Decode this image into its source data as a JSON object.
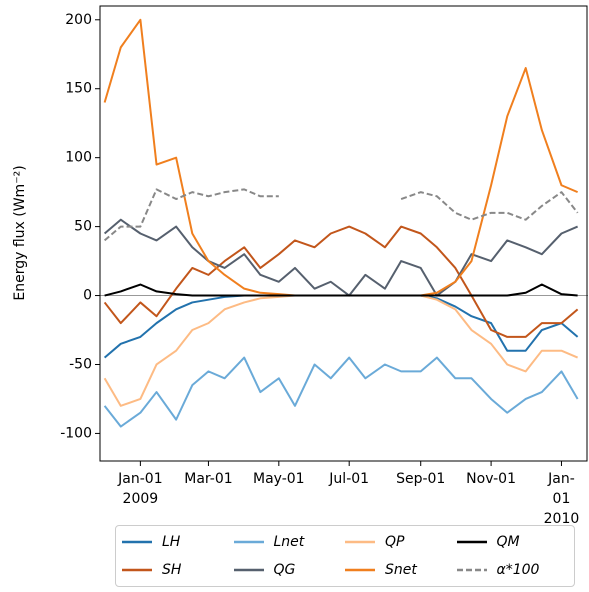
{
  "chart_data": {
    "type": "line",
    "y_label": "Energy flux (Wm⁻²)",
    "x": [
      "2008-12-01",
      "2008-12-15",
      "2009-01-01",
      "2009-01-15",
      "2009-02-01",
      "2009-02-15",
      "2009-03-01",
      "2009-03-15",
      "2009-04-01",
      "2009-04-15",
      "2009-05-01",
      "2009-05-15",
      "2009-06-01",
      "2009-06-15",
      "2009-07-01",
      "2009-07-15",
      "2009-08-01",
      "2009-08-15",
      "2009-09-01",
      "2009-09-15",
      "2009-10-01",
      "2009-10-15",
      "2009-11-01",
      "2009-11-15",
      "2009-12-01",
      "2009-12-15",
      "2010-01-01",
      "2010-01-15"
    ],
    "xlim": [
      "2008-11-27",
      "2010-01-24"
    ],
    "xticks": [
      {
        "value": "2009-01-01",
        "label": "Jan-01\n2009"
      },
      {
        "value": "2009-03-01",
        "label": "Mar-01"
      },
      {
        "value": "2009-05-01",
        "label": "May-01"
      },
      {
        "value": "2009-07-01",
        "label": "Jul-01"
      },
      {
        "value": "2009-09-01",
        "label": "Sep-01"
      },
      {
        "value": "2009-11-01",
        "label": "Nov-01"
      },
      {
        "value": "2010-01-01",
        "label": "Jan-01\n2010"
      }
    ],
    "ylim": [
      -120,
      210
    ],
    "yticks": [
      -100,
      -50,
      0,
      50,
      100,
      150,
      200
    ],
    "series": [
      {
        "name": "LH",
        "color": "#2272ad",
        "values": [
          -45,
          -35,
          -30,
          -20,
          -10,
          -5,
          -3,
          -1,
          0,
          0,
          0,
          0,
          0,
          0,
          0,
          0,
          0,
          0,
          0,
          -2,
          -8,
          -15,
          -20,
          -40,
          -40,
          -25,
          -20,
          -30
        ]
      },
      {
        "name": "SH",
        "color": "#c2561b",
        "values": [
          -5,
          -20,
          -5,
          -15,
          5,
          20,
          15,
          25,
          35,
          20,
          30,
          40,
          35,
          45,
          50,
          45,
          35,
          50,
          45,
          35,
          20,
          0,
          -25,
          -30,
          -30,
          -20,
          -20,
          -10
        ]
      },
      {
        "name": "Lnet",
        "color": "#6aaad8",
        "values": [
          -80,
          -95,
          -85,
          -70,
          -90,
          -65,
          -55,
          -60,
          -45,
          -70,
          -60,
          -80,
          -50,
          -60,
          -45,
          -60,
          -50,
          -55,
          -55,
          -45,
          -60,
          -60,
          -75,
          -85,
          -75,
          -70,
          -55,
          -75
        ]
      },
      {
        "name": "QG",
        "color": "#56606e",
        "values": [
          45,
          55,
          45,
          40,
          50,
          35,
          25,
          20,
          30,
          15,
          10,
          20,
          5,
          10,
          0,
          15,
          5,
          25,
          20,
          0,
          10,
          30,
          25,
          40,
          35,
          30,
          45,
          50
        ]
      },
      {
        "name": "QP",
        "color": "#fdbb84",
        "values": [
          -60,
          -80,
          -75,
          -50,
          -40,
          -25,
          -20,
          -10,
          -5,
          -2,
          -1,
          0,
          0,
          0,
          0,
          0,
          0,
          0,
          0,
          -3,
          -10,
          -25,
          -35,
          -50,
          -55,
          -40,
          -40,
          -45
        ]
      },
      {
        "name": "Snet",
        "color": "#f07f1e",
        "values": [
          140,
          180,
          200,
          95,
          100,
          45,
          25,
          15,
          5,
          2,
          1,
          0,
          0,
          0,
          0,
          0,
          0,
          0,
          0,
          2,
          10,
          25,
          80,
          130,
          165,
          120,
          80,
          75
        ]
      },
      {
        "name": "QM",
        "color": "#000000",
        "values": [
          0,
          3,
          8,
          3,
          1,
          0,
          0,
          0,
          0,
          0,
          0,
          0,
          0,
          0,
          0,
          0,
          0,
          0,
          0,
          0,
          0,
          0,
          0,
          0,
          2,
          8,
          1,
          0
        ]
      },
      {
        "name": "α*100",
        "color": "#888888",
        "dashed": true,
        "values": [
          40,
          50,
          50,
          77,
          70,
          75,
          72,
          75,
          77,
          72,
          72,
          null,
          null,
          null,
          null,
          null,
          null,
          70,
          75,
          72,
          60,
          55,
          60,
          60,
          55,
          65,
          75,
          60
        ]
      }
    ]
  }
}
